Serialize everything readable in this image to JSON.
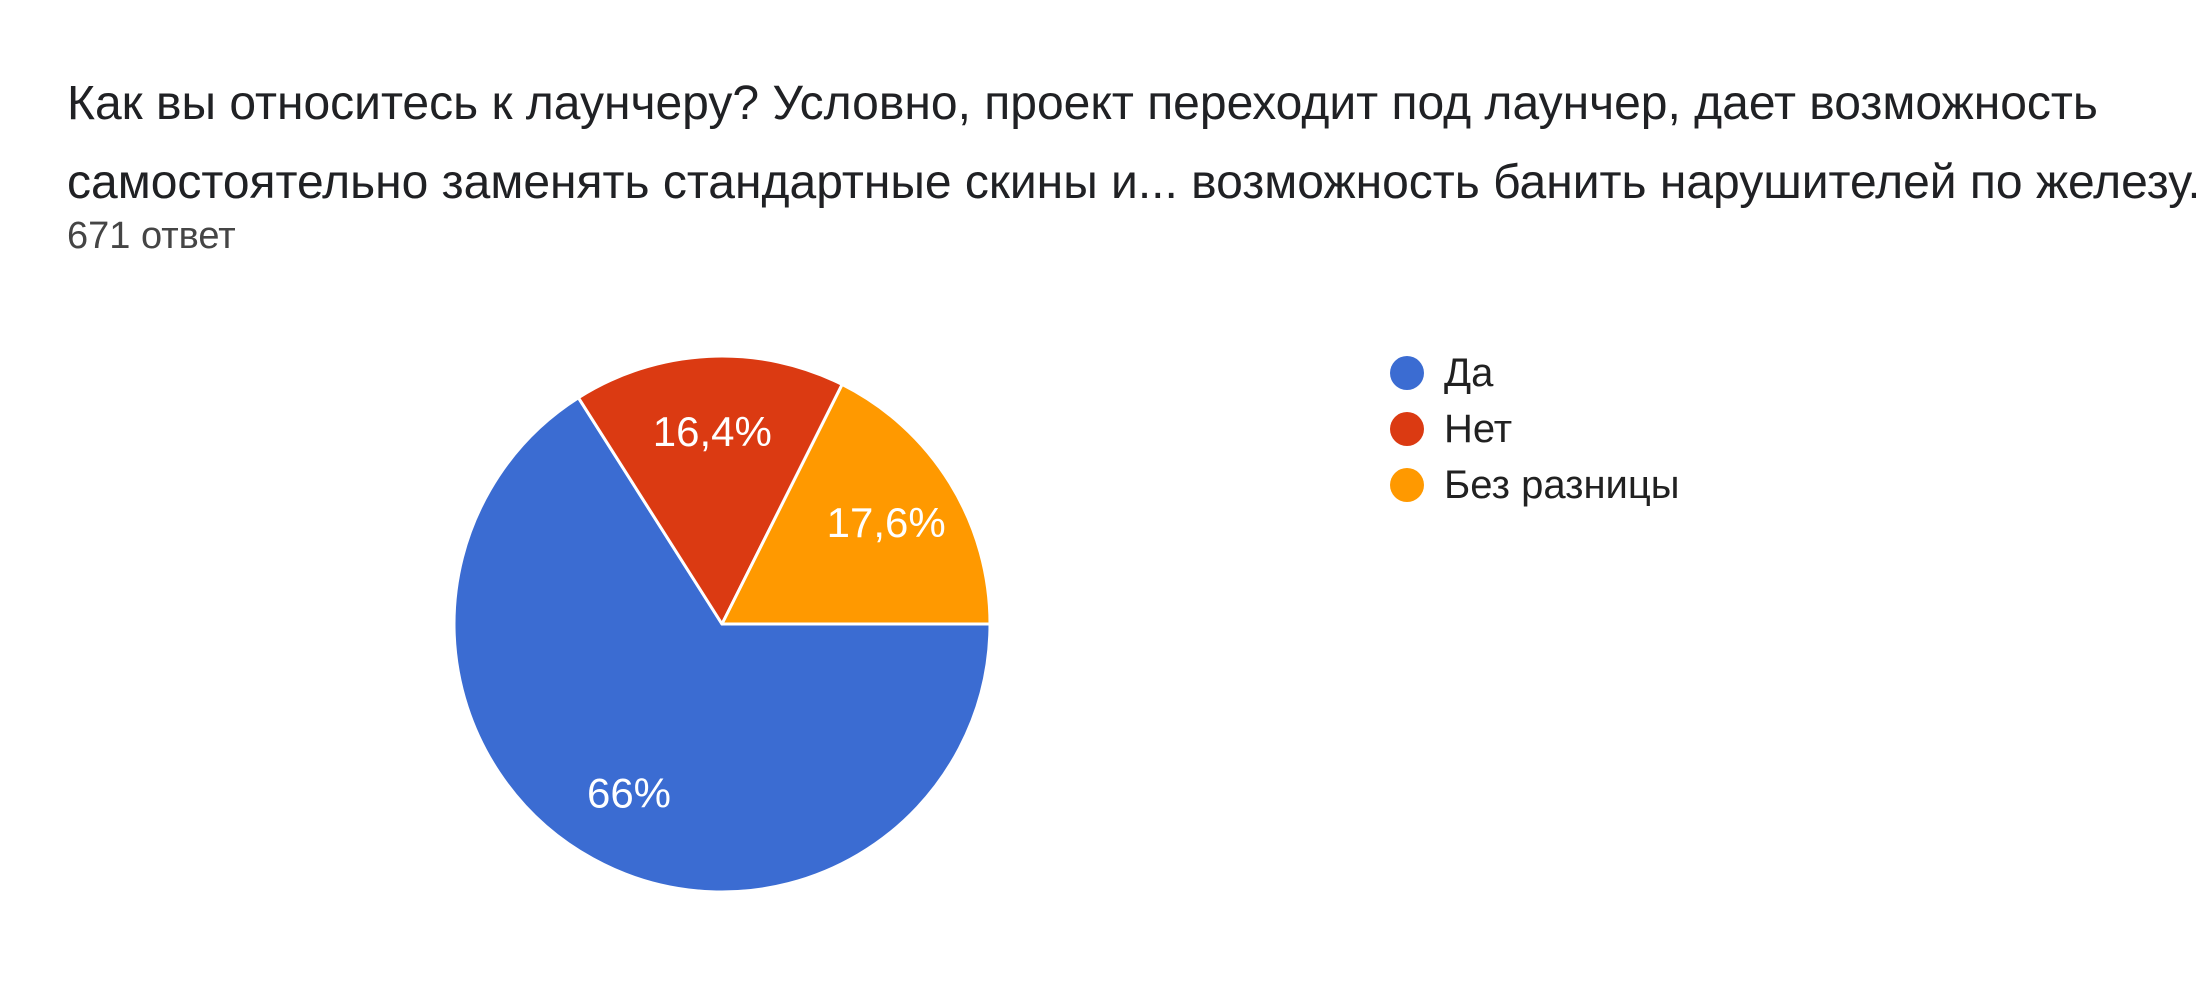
{
  "header": {
    "title_line1": "Как вы относитесь к лаунчеру? Условно, проект переходит под лаунчер, дает возможность",
    "title_line2": "самостоятельно заменять стандартные скины и... возможность банить нарушителей по железу.",
    "response_count": "671 ответ"
  },
  "chart_data": {
    "type": "pie",
    "title": "Как вы относитесь к лаунчеру? Условно, проект переходит под лаунчер, дает возможность самостоятельно заменять стандартные скины и... возможность банить нарушителей по железу.",
    "subtitle": "671 ответ",
    "direction": "clockwise",
    "start_angle_from_top_deg": 90,
    "legend_position": "right",
    "slice_label_color": "#ffffff",
    "background_color": "#ffffff",
    "slices": [
      {
        "label": "Да",
        "percent": 66,
        "display_percent": "66%",
        "color": "#3B6CD2"
      },
      {
        "label": "Нет",
        "percent": 16.4,
        "display_percent": "16,4%",
        "color": "#DB3A12"
      },
      {
        "label": "Без разницы",
        "percent": 17.6,
        "display_percent": "17,6%",
        "color": "#FF9900"
      }
    ]
  }
}
